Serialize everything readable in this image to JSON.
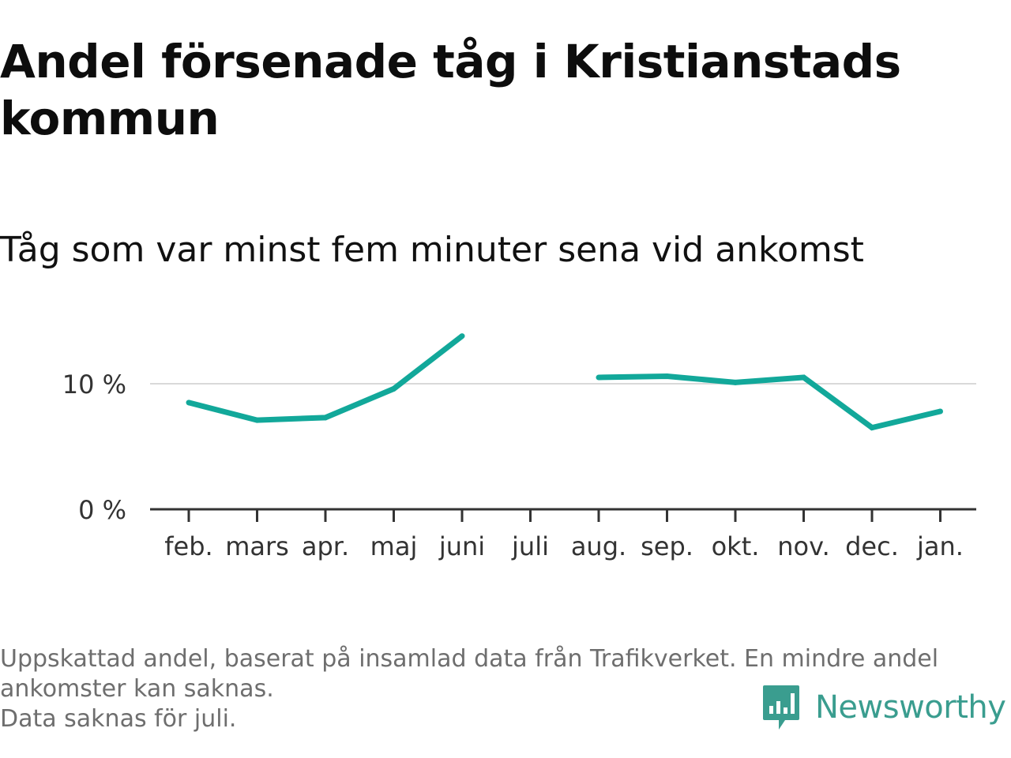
{
  "header": {
    "title": "Andel försenade tåg i Kristianstads kommun",
    "subtitle": "Tåg som var minst fem minuter sena vid ankomst"
  },
  "chart_data": {
    "type": "line",
    "title": "Andel försenade tåg i Kristianstads kommun",
    "subtitle": "Tåg som var minst fem minuter sena vid ankomst",
    "xlabel": "",
    "ylabel": "",
    "categories": [
      "feb.",
      "mars",
      "apr.",
      "maj",
      "juni",
      "juli",
      "aug.",
      "sep.",
      "okt.",
      "nov.",
      "dec.",
      "jan."
    ],
    "series": [
      {
        "values": [
          8.5,
          7.1,
          7.3,
          9.6,
          13.8,
          null,
          10.5,
          10.6,
          10.1,
          10.5,
          6.5,
          7.8
        ],
        "color": "#12a89a"
      }
    ],
    "y_ticks": [
      {
        "value": 0,
        "label": "0 %"
      },
      {
        "value": 10,
        "label": "10 %"
      }
    ],
    "ylim": [
      0,
      16
    ],
    "grid": true
  },
  "footnote": {
    "line1": "Uppskattad andel, baserat på insamlad data från Trafikverket. En mindre andel",
    "line2": "ankomster kan saknas.",
    "line3": "Data saknas för juli."
  },
  "brand": {
    "name": "Newsworthy",
    "icon": "newsworthy-logo-icon",
    "color": "#3a9d8f"
  },
  "colors": {
    "line": "#12a89a",
    "gridline": "#d9d9d9",
    "axis": "#333333"
  }
}
